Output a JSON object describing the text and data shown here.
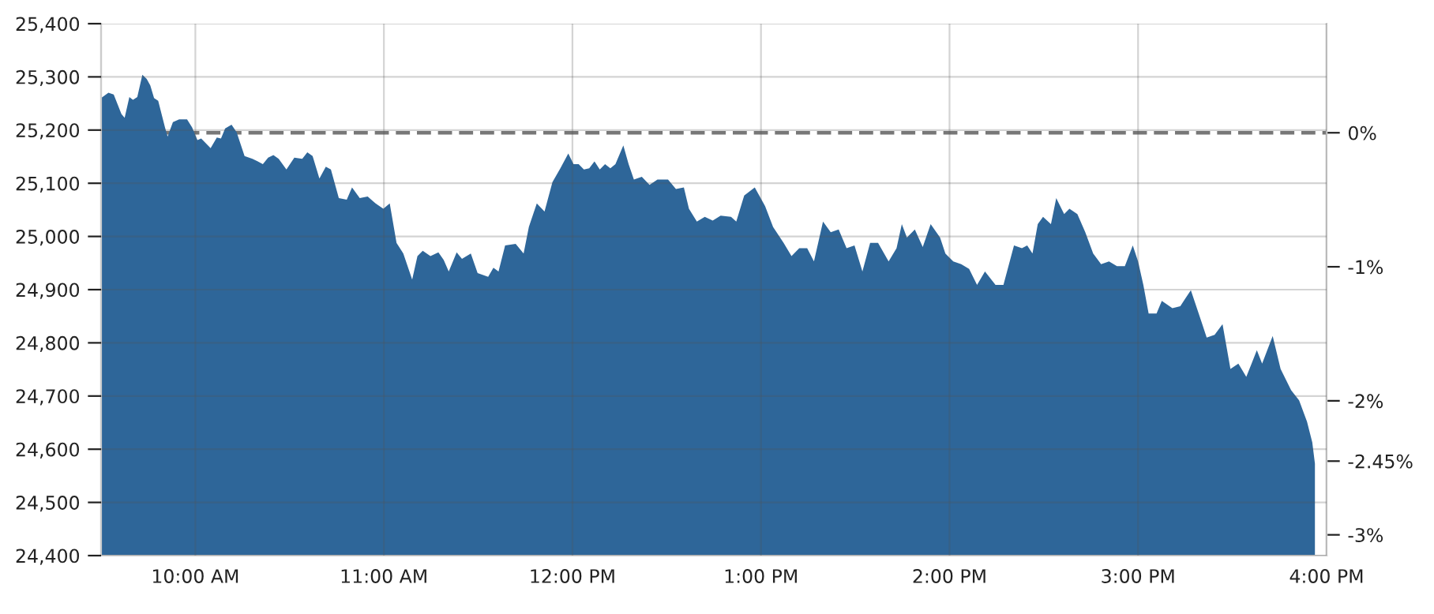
{
  "chart_data": {
    "type": "area",
    "x": [
      9.5,
      9.539,
      9.567,
      9.608,
      9.625,
      9.65,
      9.669,
      9.692,
      9.719,
      9.742,
      9.761,
      9.781,
      9.803,
      9.839,
      9.853,
      9.881,
      9.914,
      9.956,
      9.983,
      10.011,
      10.031,
      10.081,
      10.114,
      10.136,
      10.158,
      10.192,
      10.219,
      10.261,
      10.303,
      10.331,
      10.358,
      10.386,
      10.414,
      10.442,
      10.483,
      10.525,
      10.567,
      10.594,
      10.622,
      10.658,
      10.692,
      10.719,
      10.761,
      10.803,
      10.831,
      10.872,
      10.914,
      10.956,
      10.997,
      11.031,
      11.067,
      11.103,
      11.15,
      11.178,
      11.206,
      11.247,
      11.289,
      11.317,
      11.344,
      11.386,
      11.414,
      11.461,
      11.497,
      11.553,
      11.581,
      11.608,
      11.643,
      11.699,
      11.741,
      11.769,
      11.811,
      11.852,
      11.894,
      11.936,
      11.978,
      12.006,
      12.033,
      12.061,
      12.089,
      12.117,
      12.145,
      12.173,
      12.201,
      12.228,
      12.27,
      12.298,
      12.326,
      12.368,
      12.409,
      12.451,
      12.507,
      12.549,
      12.591,
      12.618,
      12.66,
      12.702,
      12.744,
      12.786,
      12.841,
      12.869,
      12.911,
      12.967,
      13.022,
      13.064,
      13.12,
      13.162,
      13.203,
      13.245,
      13.281,
      13.329,
      13.37,
      13.412,
      13.454,
      13.496,
      13.538,
      13.579,
      13.621,
      13.677,
      13.719,
      13.747,
      13.774,
      13.816,
      13.858,
      13.9,
      13.95,
      13.978,
      14.02,
      14.062,
      14.104,
      14.146,
      14.188,
      14.244,
      14.286,
      14.342,
      14.384,
      14.412,
      14.44,
      14.468,
      14.496,
      14.538,
      14.566,
      14.608,
      14.636,
      14.678,
      14.72,
      14.762,
      14.804,
      14.846,
      14.888,
      14.93,
      14.972,
      15.0,
      15.028,
      15.056,
      15.098,
      15.126,
      15.182,
      15.224,
      15.252,
      15.28,
      15.336,
      15.364,
      15.406,
      15.448,
      15.49,
      15.532,
      15.574,
      15.602,
      15.63,
      15.658,
      15.714,
      15.756,
      15.812,
      15.854,
      15.896,
      15.924,
      15.938
    ],
    "series": [
      {
        "color": "#2e6699",
        "values": [
          25260,
          25270,
          25267,
          25230,
          25223,
          25262,
          25257,
          25262,
          25304,
          25296,
          25284,
          25260,
          25255,
          25205,
          25188,
          25215,
          25220,
          25220,
          25205,
          25181,
          25184,
          25166,
          25186,
          25184,
          25203,
          25210,
          25196,
          25151,
          25146,
          25141,
          25136,
          25148,
          25153,
          25146,
          25126,
          25148,
          25146,
          25158,
          25151,
          25109,
          25131,
          25126,
          25072,
          25069,
          25092,
          25072,
          25075,
          25062,
          25052,
          25062,
          24988,
          24968,
          24919,
          24963,
          24973,
          24963,
          24970,
          24956,
          24934,
          24970,
          24958,
          24968,
          24931,
          24924,
          24941,
          24934,
          24983,
          24986,
          24968,
          25018,
          25062,
          25047,
          25102,
          25128,
          25156,
          25136,
          25136,
          25126,
          25128,
          25141,
          25126,
          25136,
          25128,
          25136,
          25171,
          25136,
          25107,
          25112,
          25097,
          25107,
          25107,
          25089,
          25092,
          25052,
          25028,
          25037,
          25030,
          25039,
          25037,
          25028,
          25077,
          25092,
          25057,
          25018,
          24988,
          24963,
          24978,
          24978,
          24953,
          25028,
          25008,
          25013,
          24978,
          24983,
          24934,
          24988,
          24988,
          24953,
          24978,
          25023,
          24998,
          25013,
          24980,
          25023,
          24998,
          24968,
          24953,
          24948,
          24939,
          24909,
          24934,
          24909,
          24909,
          24983,
          24978,
          24983,
          24968,
          25023,
          25037,
          25023,
          25072,
          25042,
          25052,
          25042,
          25008,
          24968,
          24948,
          24953,
          24944,
          24944,
          24983,
          24953,
          24909,
          24855,
          24855,
          24879,
          24865,
          24869,
          24884,
          24899,
          24840,
          24810,
          24815,
          24835,
          24751,
          24761,
          24736,
          24761,
          24786,
          24761,
          24813,
          24751,
          24711,
          24692,
          24652,
          24613,
          24573
        ]
      }
    ],
    "xlim": [
      9.5,
      16
    ],
    "xticks": [
      {
        "value": 10,
        "label": "10:00 AM"
      },
      {
        "value": 11,
        "label": "11:00 AM"
      },
      {
        "value": 12,
        "label": "12:00 PM"
      },
      {
        "value": 13,
        "label": "1:00 PM"
      },
      {
        "value": 14,
        "label": "2:00 PM"
      },
      {
        "value": 15,
        "label": "3:00 PM"
      },
      {
        "value": 16,
        "label": "4:00 PM"
      }
    ],
    "ylim": [
      24400,
      25400
    ],
    "yticks": [
      {
        "value": 24400,
        "label": "24,400"
      },
      {
        "value": 24500,
        "label": "24,500"
      },
      {
        "value": 24600,
        "label": "24,600"
      },
      {
        "value": 24700,
        "label": "24,700"
      },
      {
        "value": 24800,
        "label": "24,800"
      },
      {
        "value": 24900,
        "label": "24,900"
      },
      {
        "value": 25000,
        "label": "25,000"
      },
      {
        "value": 25100,
        "label": "25,100"
      },
      {
        "value": 25200,
        "label": "25,200"
      },
      {
        "value": 25300,
        "label": "25,300"
      },
      {
        "value": 25400,
        "label": "25,400"
      }
    ],
    "y2lim": [
      -3.155,
      0.814
    ],
    "y2ticks": [
      {
        "value": 0,
        "label": "0%"
      },
      {
        "value": -1,
        "label": "-1%"
      },
      {
        "value": -2,
        "label": "-2%"
      },
      {
        "value": -2.45,
        "label": "-2.45%"
      },
      {
        "value": -3,
        "label": "-3%"
      }
    ],
    "ref_lines": [
      {
        "axis": "y2",
        "value": 0,
        "color": "#777777",
        "line_style": "dashed"
      }
    ],
    "grid": true
  }
}
